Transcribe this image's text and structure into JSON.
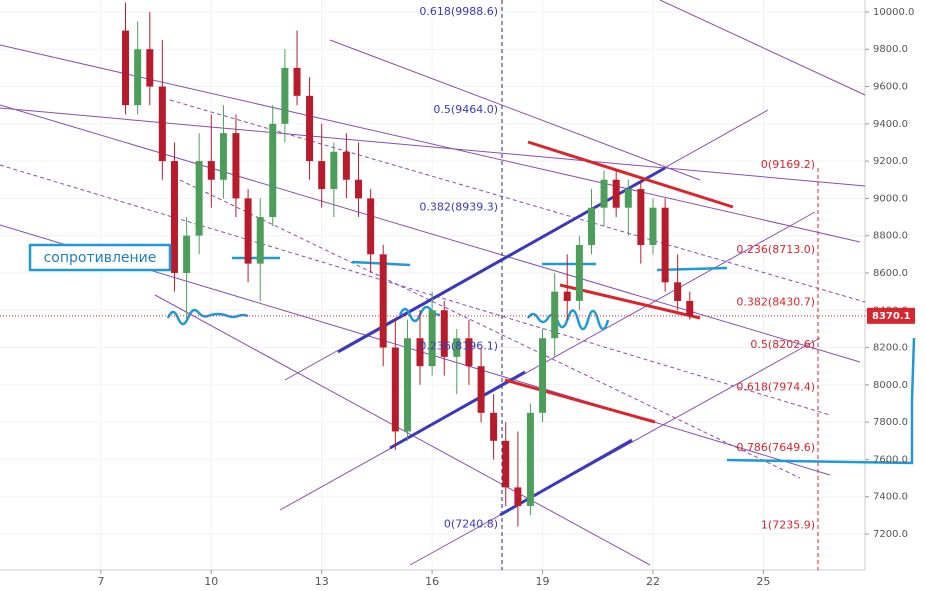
{
  "chart_data": {
    "type": "candlestick",
    "xlim": [
      4.26,
      27.76
    ],
    "xticks": [
      7,
      10,
      13,
      16,
      19,
      22,
      25
    ],
    "ylim": [
      7007,
      10064
    ],
    "yticks": [
      {
        "value": 7200,
        "label": "7200.0"
      },
      {
        "value": 7400,
        "label": "7400.0"
      },
      {
        "value": 7600,
        "label": "7600.0"
      },
      {
        "value": 7800,
        "label": "7800.0"
      },
      {
        "value": 8000,
        "label": "8000.0"
      },
      {
        "value": 8200,
        "label": "8200.0"
      },
      {
        "value": 8400,
        "label": "8400.0"
      },
      {
        "value": 8600,
        "label": "8600.0"
      },
      {
        "value": 8800,
        "label": "8800.0"
      },
      {
        "value": 9000,
        "label": "9000.0"
      },
      {
        "value": 9200,
        "label": "9200.0"
      },
      {
        "value": 9400,
        "label": "9400.0"
      },
      {
        "value": 9600,
        "label": "9600.0"
      },
      {
        "value": 9800,
        "label": "9800.0"
      },
      {
        "value": 10000,
        "label": "10000.0"
      }
    ],
    "grid": true,
    "up_color": "#4d9e5a",
    "down_color": "#b81c2c",
    "x": [
      7.67,
      8.0,
      8.33,
      8.67,
      9.0,
      9.33,
      9.67,
      10.0,
      10.33,
      10.67,
      11.0,
      11.33,
      11.67,
      12.0,
      12.33,
      12.67,
      13.0,
      13.33,
      13.67,
      14.0,
      14.33,
      14.67,
      15.0,
      15.33,
      15.67,
      16.0,
      16.33,
      16.67,
      17.0,
      17.33,
      17.67,
      18.0,
      18.33,
      18.67,
      19.0,
      19.33,
      19.67,
      20.0,
      20.33,
      20.67,
      21.0,
      21.33,
      21.67,
      22.0,
      22.33,
      22.67,
      23.0
    ],
    "open": [
      9900,
      9500,
      9800,
      9600,
      9200,
      8600,
      8800,
      9200,
      9100,
      9350,
      9000,
      8650,
      8900,
      9400,
      9700,
      9550,
      9200,
      9050,
      9250,
      9100,
      9000,
      8700,
      8200,
      7750,
      8250,
      8100,
      8400,
      8150,
      8250,
      8100,
      7850,
      7700,
      7450,
      7350,
      7850,
      8250,
      8500,
      8450,
      8750,
      8950,
      9100,
      8950,
      9050,
      8750,
      8950,
      8550,
      8450
    ],
    "high": [
      10050,
      9950,
      10000,
      9850,
      9300,
      8900,
      9350,
      9450,
      9500,
      9450,
      9050,
      9000,
      9500,
      9800,
      9900,
      9650,
      9400,
      9300,
      9350,
      9300,
      9050,
      8750,
      8350,
      8350,
      8400,
      8500,
      8450,
      8300,
      8350,
      8200,
      7950,
      7800,
      7750,
      7900,
      8300,
      8600,
      8700,
      8800,
      9050,
      9150,
      9150,
      9100,
      9100,
      9000,
      9000,
      8700,
      8500
    ],
    "low": [
      9450,
      9450,
      9500,
      9100,
      8500,
      8350,
      8700,
      8950,
      9000,
      8900,
      8550,
      8450,
      8850,
      9300,
      9500,
      9100,
      8950,
      8900,
      9000,
      8900,
      8600,
      8100,
      7650,
      7700,
      8000,
      8050,
      8050,
      7950,
      8000,
      7800,
      7600,
      7350,
      7240,
      7300,
      7800,
      8150,
      8350,
      8400,
      8700,
      8850,
      8900,
      8800,
      8650,
      8700,
      8500,
      8400,
      8350
    ],
    "close": [
      9500,
      9800,
      9600,
      9200,
      8600,
      8800,
      9200,
      9100,
      9350,
      9000,
      8650,
      8900,
      9400,
      9700,
      9550,
      9200,
      9050,
      9250,
      9100,
      9000,
      8700,
      8200,
      7750,
      8250,
      8100,
      8400,
      8150,
      8250,
      8100,
      7850,
      7700,
      7450,
      7350,
      7850,
      8250,
      8500,
      8450,
      8750,
      8950,
      9100,
      8950,
      9050,
      8750,
      8950,
      8550,
      8450,
      8370
    ],
    "last_price": 8370.1,
    "annotation": "сопротивление",
    "fib_left": [
      {
        "value": 9988.6,
        "label": "0.618(9988.6)"
      },
      {
        "value": 9464.0,
        "label": "0.5(9464.0)"
      },
      {
        "value": 8939.3,
        "label": "0.382(8939.3)"
      },
      {
        "value": 8196.1,
        "label": "0.236(8196.1)"
      },
      {
        "value": 7240.8,
        "label": "0(7240.8)"
      }
    ],
    "fib_right": [
      {
        "value": 9169.2,
        "label": "0(9169.2)"
      },
      {
        "value": 8713.0,
        "label": "0.236(8713.0)"
      },
      {
        "value": 8430.7,
        "label": "0.382(8430.7)"
      },
      {
        "value": 8202.6,
        "label": "0.5(8202.6)"
      },
      {
        "value": 7974.4,
        "label": "0.618(7974.4)"
      },
      {
        "value": 7649.6,
        "label": "0.786(7649.6)"
      },
      {
        "value": 7235.9,
        "label": "1(7235.9)"
      }
    ]
  }
}
